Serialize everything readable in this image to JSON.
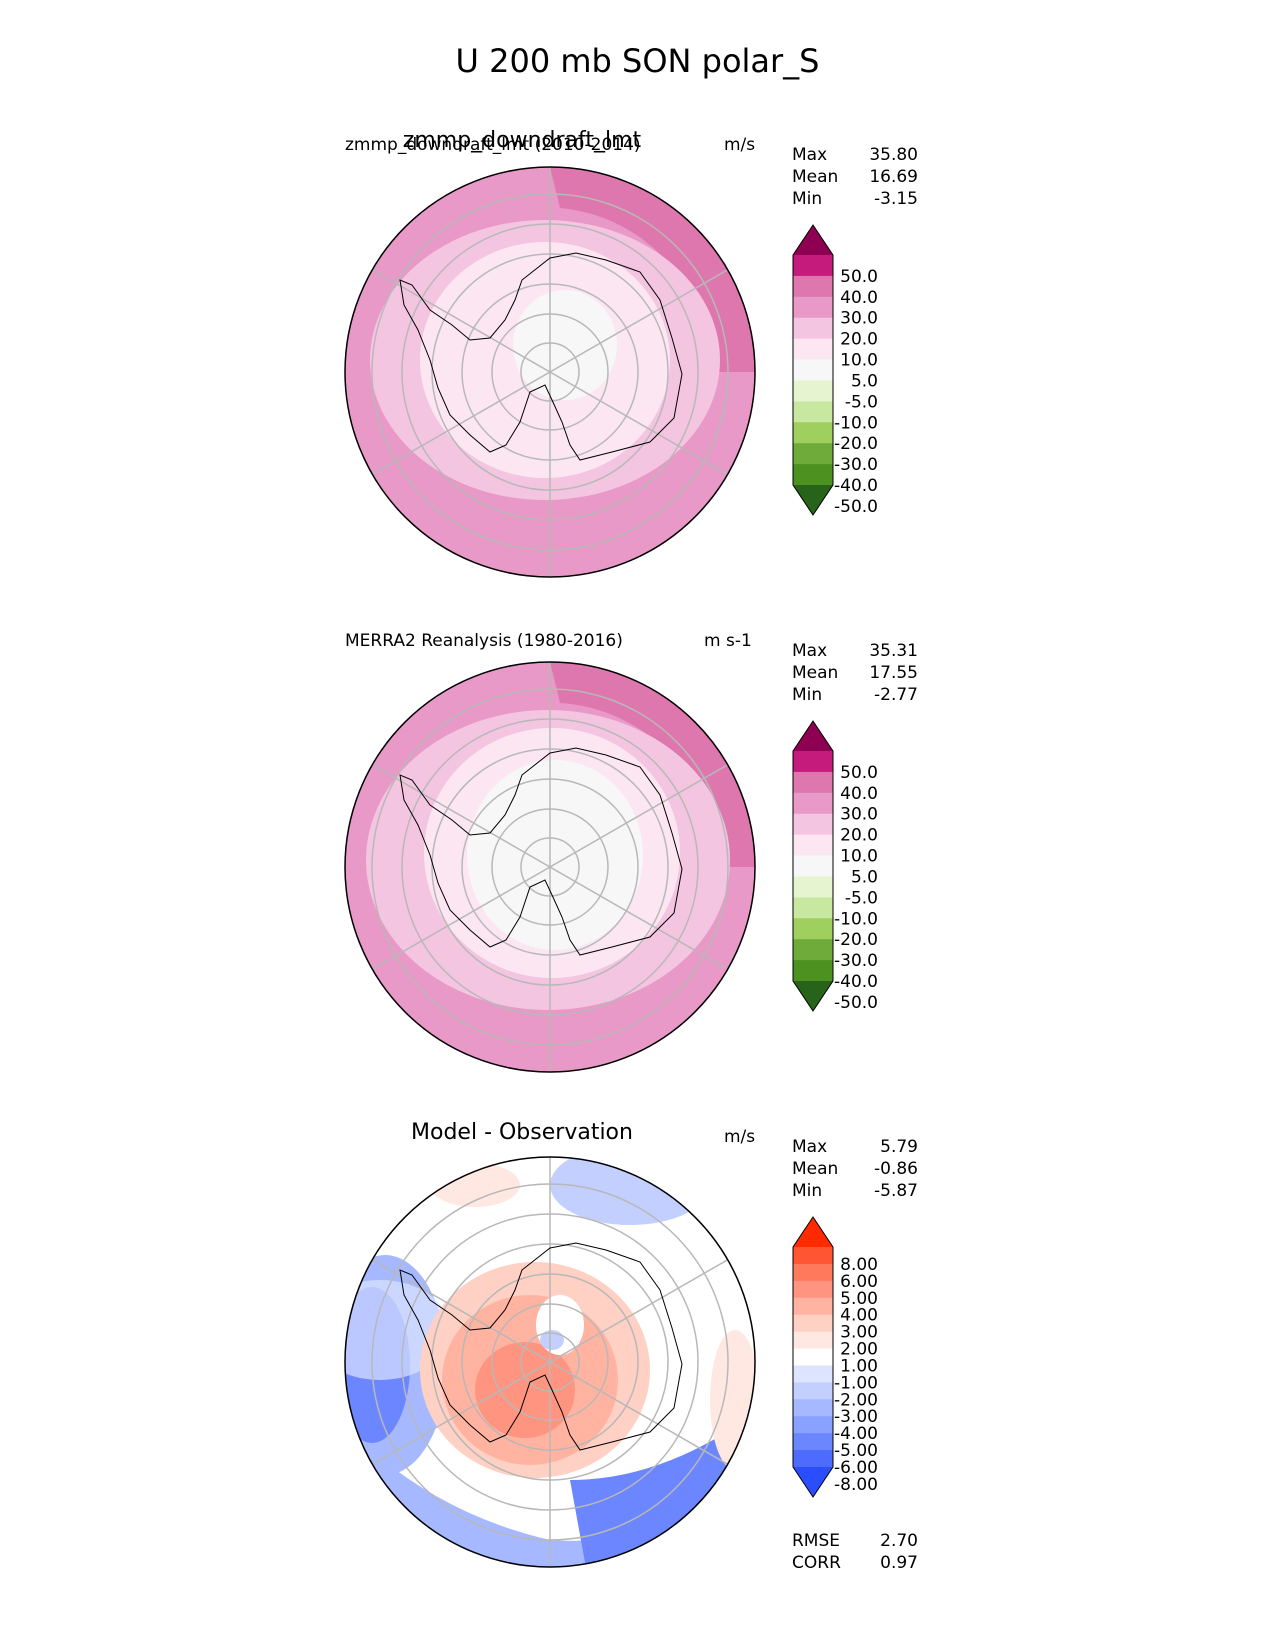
{
  "title": "U 200 mb SON polar_S",
  "chart_data": [
    {
      "type": "heatmap",
      "projection": "south polar stereographic",
      "title": "zmmp_downdraft_lmt",
      "subtitle": "zmmp_downdraft_lmt (2010-2014)",
      "units": "m/s",
      "stats": {
        "Max": "35.80",
        "Mean": "16.69",
        "Min": "-3.15"
      },
      "colorbar": {
        "levels": [
          "50.0",
          "40.0",
          "30.0",
          "20.0",
          "10.0",
          "5.0",
          "-5.0",
          "-10.0",
          "-20.0",
          "-30.0",
          "-40.0",
          "-50.0"
        ],
        "colors": [
          "#8e0152",
          "#c51b7d",
          "#de77ae",
          "#e899c7",
          "#f4c5e1",
          "#fce6f2",
          "#f7f7f7",
          "#e6f5d0",
          "#c8e8a0",
          "#9fd05f",
          "#6fab3a",
          "#4d9221",
          "#276419"
        ]
      }
    },
    {
      "type": "heatmap",
      "projection": "south polar stereographic",
      "title": "",
      "subtitle": "MERRA2 Reanalysis (1980-2016)",
      "units": "m s-1",
      "stats": {
        "Max": "35.31",
        "Mean": "17.55",
        "Min": "-2.77"
      },
      "colorbar": {
        "levels": [
          "50.0",
          "40.0",
          "30.0",
          "20.0",
          "10.0",
          "5.0",
          "-5.0",
          "-10.0",
          "-20.0",
          "-30.0",
          "-40.0",
          "-50.0"
        ],
        "colors": [
          "#8e0152",
          "#c51b7d",
          "#de77ae",
          "#e899c7",
          "#f4c5e1",
          "#fce6f2",
          "#f7f7f7",
          "#e6f5d0",
          "#c8e8a0",
          "#9fd05f",
          "#6fab3a",
          "#4d9221",
          "#276419"
        ]
      }
    },
    {
      "type": "heatmap",
      "projection": "south polar stereographic",
      "title": "Model - Observation",
      "subtitle": "",
      "units": "m/s",
      "stats": {
        "Max": "5.79",
        "Mean": "-0.86",
        "Min": "-5.87"
      },
      "metrics": {
        "RMSE": "2.70",
        "CORR": "0.97"
      },
      "colorbar": {
        "levels": [
          "8.00",
          "6.00",
          "5.00",
          "4.00",
          "3.00",
          "2.00",
          "1.00",
          "-1.00",
          "-2.00",
          "-3.00",
          "-4.00",
          "-5.00",
          "-6.00",
          "-8.00"
        ],
        "colors": [
          "#ff2a00",
          "#ff5533",
          "#ff7a5c",
          "#ff9580",
          "#ffb3a0",
          "#ffd0c4",
          "#ffe8e2",
          "#ffffff",
          "#dde4ff",
          "#c2cfff",
          "#a6b8ff",
          "#8aa2ff",
          "#6b86ff",
          "#4d6bff",
          "#2a4dff"
        ]
      }
    }
  ]
}
